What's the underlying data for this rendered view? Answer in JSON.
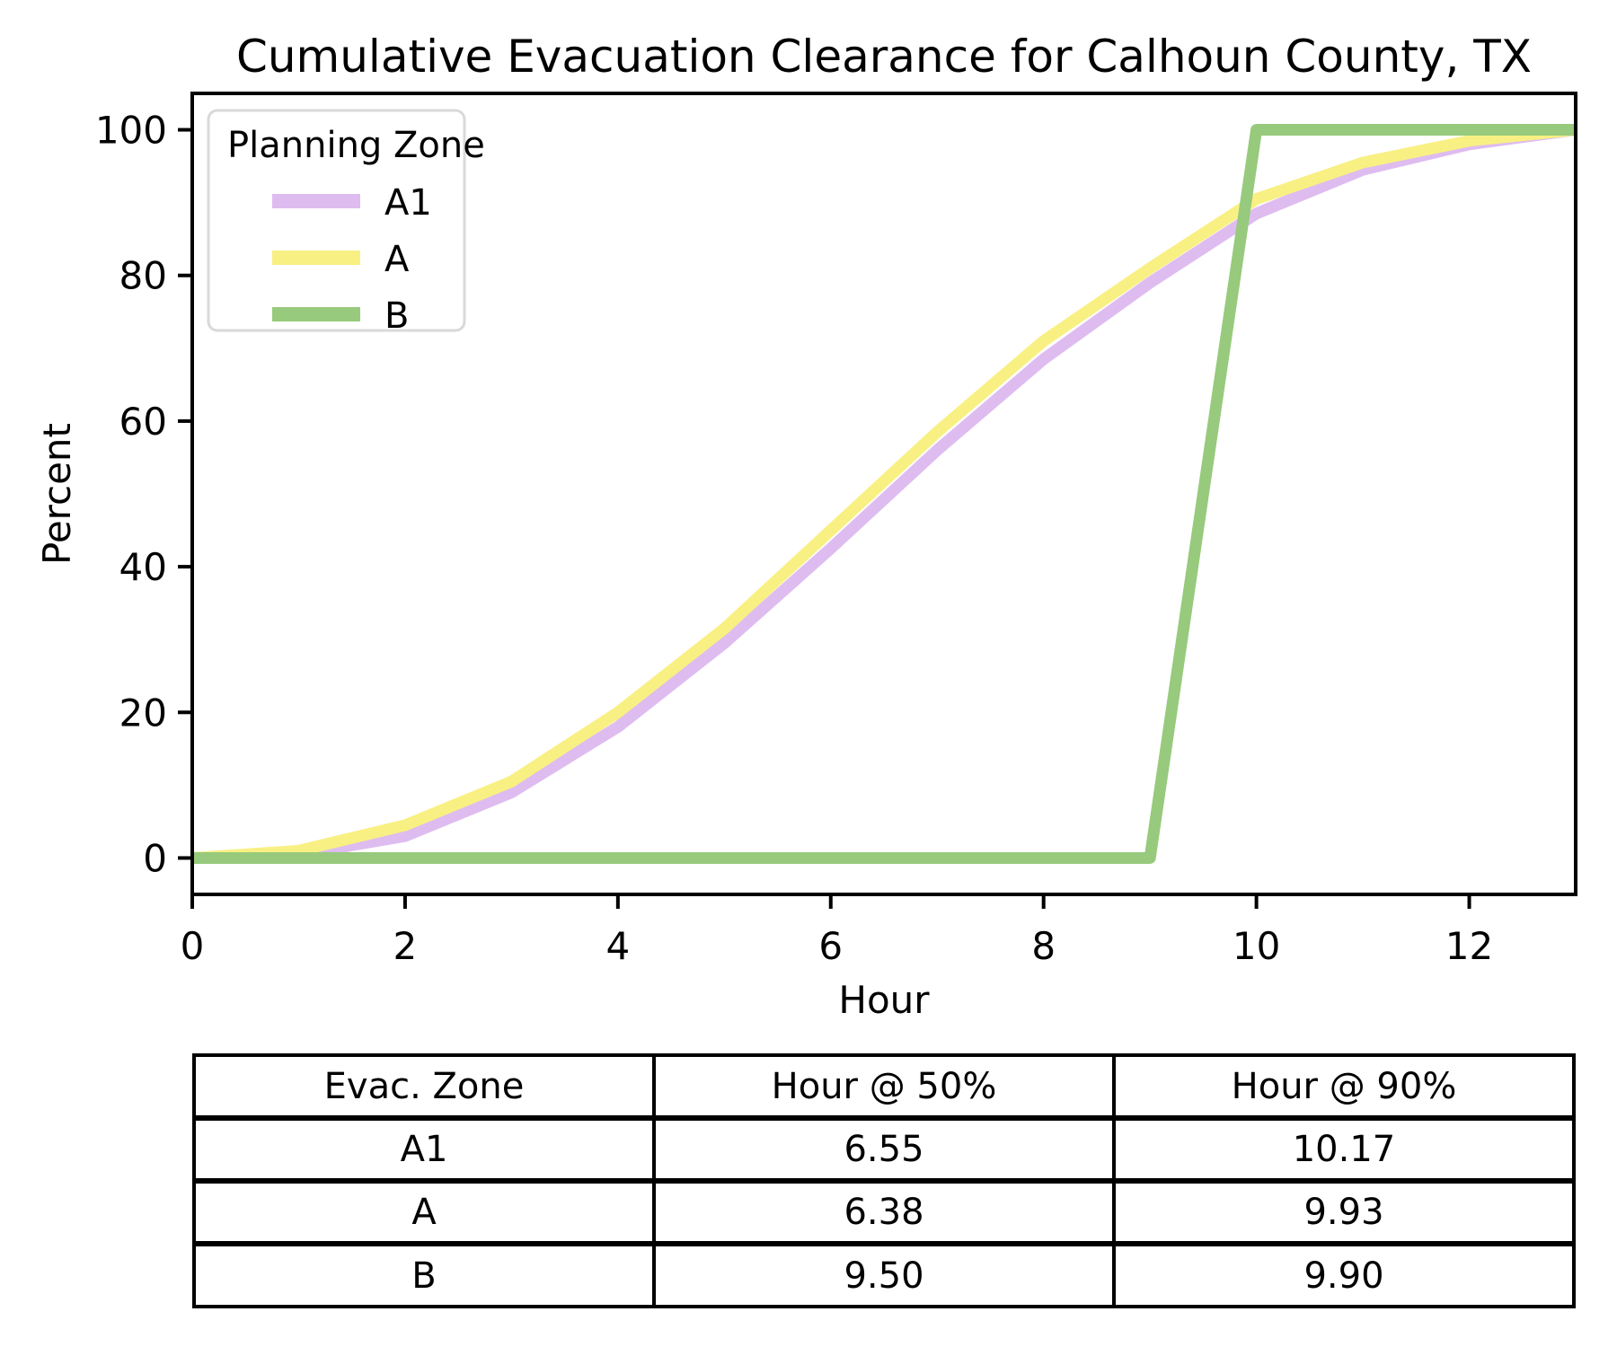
{
  "figure": {
    "background": "#ffffff"
  },
  "chart_data": {
    "type": "line",
    "title": "Cumulative Evacuation Clearance for Calhoun County, TX",
    "xlabel": "Hour",
    "ylabel": "Percent",
    "xlim": [
      0,
      13
    ],
    "ylim": [
      -5,
      105
    ],
    "xticks": [
      0,
      2,
      4,
      6,
      8,
      10,
      12
    ],
    "yticks": [
      0,
      20,
      40,
      60,
      80,
      100
    ],
    "grid": false,
    "legend": {
      "title": "Planning Zone",
      "position": "upper left",
      "border_color": "#d9d9d9",
      "background": "#ffffff"
    },
    "x": [
      0,
      1,
      2,
      3,
      4,
      5,
      6,
      7,
      8,
      9,
      10,
      11,
      12,
      13
    ],
    "series": [
      {
        "name": "A1",
        "color": "#debcf0",
        "values": [
          0,
          0.5,
          3,
          9,
          18,
          29.5,
          42.5,
          56,
          68.5,
          79,
          88.5,
          94.5,
          98,
          100
        ]
      },
      {
        "name": "A",
        "color": "#f9f083",
        "values": [
          0,
          1,
          4.5,
          10.5,
          20,
          31.5,
          45,
          58.5,
          71,
          81,
          90.5,
          95.5,
          98.5,
          100
        ]
      },
      {
        "name": "B",
        "color": "#97ca7c",
        "values": [
          0,
          0,
          0,
          0,
          0,
          0,
          0,
          0,
          0,
          0,
          100,
          100,
          100,
          100
        ]
      }
    ]
  },
  "summary_table": {
    "headers": [
      "Evac. Zone",
      "Hour @ 50%",
      "Hour @ 90%"
    ],
    "rows": [
      [
        "A1",
        "6.55",
        "10.17"
      ],
      [
        "A",
        "6.38",
        "9.93"
      ],
      [
        "B",
        "9.50",
        "9.90"
      ]
    ]
  }
}
